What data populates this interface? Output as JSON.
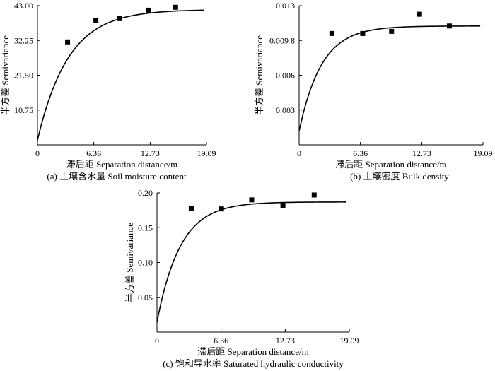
{
  "chart_data": [
    {
      "id": "a",
      "type": "scatter",
      "xlabel": "滞后距 Separation distance/m",
      "ylabel": "半方差 Semivariance",
      "caption": "(a) 土壤含水量 Soil moisture content",
      "xlim": [
        0,
        19.09
      ],
      "ylim": [
        0,
        43.0
      ],
      "xticks": [
        "0",
        "6.36",
        "12.73",
        "19.09"
      ],
      "xtick_values": [
        0,
        6.36,
        12.73,
        19.09
      ],
      "yticks": [
        "10.75",
        "21.50",
        "32.25",
        "43.00"
      ],
      "ytick_values": [
        10.75,
        21.5,
        32.25,
        43.0
      ],
      "points": {
        "x": [
          3.4,
          6.6,
          9.3,
          12.5,
          15.6
        ],
        "y": [
          31.8,
          38.5,
          39.0,
          41.6,
          42.5
        ]
      },
      "model_curve": {
        "type": "exponential",
        "nugget": 1.5,
        "sill": 41.8,
        "range": 10.5
      }
    },
    {
      "id": "b",
      "type": "scatter",
      "xlabel": "滞后距 Separation distance/m",
      "ylabel": "半方差 Semivariance",
      "caption": "(b) 土壤密度 Bulk density",
      "xlim": [
        0,
        19.09
      ],
      "ylim": [
        0,
        0.013
      ],
      "xticks": [
        "0",
        "6.36",
        "12.73",
        "19.09"
      ],
      "xtick_values": [
        0,
        6.36,
        12.73,
        19.09
      ],
      "yticks": [
        "0.003",
        "0.006",
        "0.009 8",
        "0.013"
      ],
      "ytick_values": [
        0.00325,
        0.0065,
        0.00975,
        0.013
      ],
      "points": {
        "x": [
          3.4,
          6.6,
          9.6,
          12.5,
          15.6
        ],
        "y": [
          0.0104,
          0.0104,
          0.0106,
          0.0122,
          0.0111
        ]
      },
      "model_curve": {
        "type": "exponential",
        "nugget": 0.0013,
        "sill": 0.0111,
        "range": 7.0
      }
    },
    {
      "id": "c",
      "type": "scatter",
      "xlabel": "滞后距 Separation distance/m",
      "ylabel": "半方差 Semivariance",
      "caption": "(c) 饱和导水率 Saturated hydraulic conductivity",
      "xlim": [
        0,
        19.09
      ],
      "ylim": [
        0,
        0.2
      ],
      "xticks": [
        "0",
        "6.36",
        "12.73",
        "19.09"
      ],
      "xtick_values": [
        0,
        6.36,
        12.73,
        19.09
      ],
      "yticks": [
        "0.05",
        "0.10",
        "0.15",
        "0.20"
      ],
      "ytick_values": [
        0.05,
        0.1,
        0.15,
        0.2
      ],
      "points": {
        "x": [
          3.4,
          6.4,
          9.4,
          12.5,
          15.6
        ],
        "y": [
          0.178,
          0.177,
          0.19,
          0.182,
          0.197
        ]
      },
      "model_curve": {
        "type": "exponential",
        "nugget": 0.015,
        "sill": 0.187,
        "range": 7.0
      }
    }
  ]
}
